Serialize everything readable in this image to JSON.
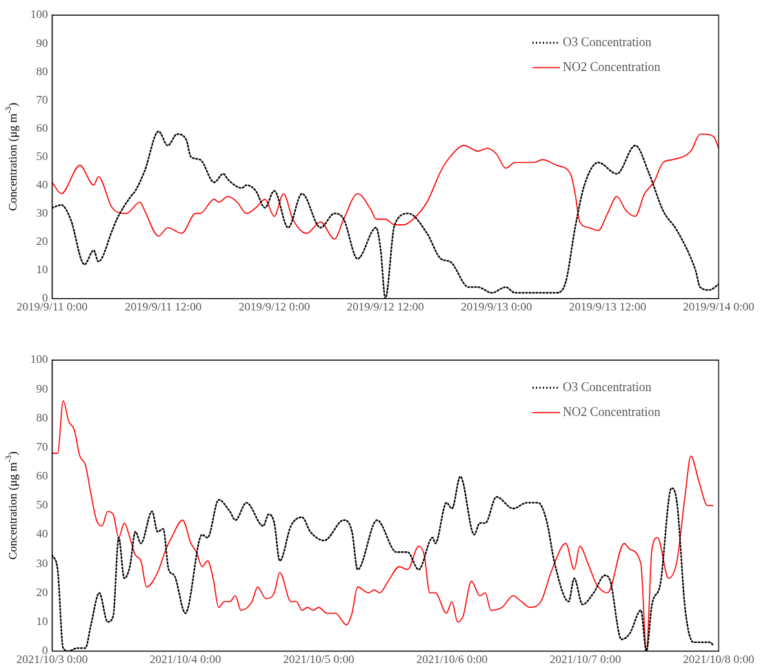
{
  "chart_data": [
    {
      "type": "line",
      "ylabel": "Concentration (μg m$^{-3}$)",
      "legend": "top right",
      "marker": "none",
      "xlim": [
        "2019-09-11T00:00",
        "2019-09-14T00:00"
      ],
      "xticks": [
        {
          "value": "2019-09-11T00:00",
          "label": "2019/9/11 0:00"
        },
        {
          "value": "2019-09-11T12:00",
          "label": "2019/9/11 12:00"
        },
        {
          "value": "2019-09-12T00:00",
          "label": "2019/9/12 0:00"
        },
        {
          "value": "2019-09-12T12:00",
          "label": "2019/9/12 12:00"
        },
        {
          "value": "2019-09-13T00:00",
          "label": "2019/9/13 0:00"
        },
        {
          "value": "2019-09-13T12:00",
          "label": "2019/9/13 12:00"
        },
        {
          "value": "2019-09-14T00:00",
          "label": "2019/9/14 0:00"
        }
      ],
      "ylim": [
        0,
        100
      ],
      "yticks": [
        0,
        10,
        20,
        30,
        40,
        50,
        60,
        70,
        80,
        90,
        100
      ],
      "series": [
        {
          "name": "O3 Concentration",
          "color": "#000000",
          "line_style": "dotted",
          "x": [
            "2019-09-11T00:00",
            "2019-09-11T01:00",
            "2019-09-11T02:00",
            "2019-09-11T03:30",
            "2019-09-11T04:30",
            "2019-09-11T05:00",
            "2019-09-11T06:30",
            "2019-09-11T07:00",
            "2019-09-11T08:30",
            "2019-09-11T09:00",
            "2019-09-11T10:00",
            "2019-09-11T11:30",
            "2019-09-11T12:30",
            "2019-09-11T13:30",
            "2019-09-11T14:30",
            "2019-09-11T15:00",
            "2019-09-11T16:00",
            "2019-09-11T17:30",
            "2019-09-11T18:30",
            "2019-09-11T19:00",
            "2019-09-11T20:30",
            "2019-09-11T21:00",
            "2019-09-11T22:00",
            "2019-09-11T23:00",
            "2019-09-12T00:00",
            "2019-09-12T01:30",
            "2019-09-12T03:00",
            "2019-09-12T05:00",
            "2019-09-12T06:30",
            "2019-09-12T07:30",
            "2019-09-12T09:00",
            "2019-09-12T11:00",
            "2019-09-12T11:30",
            "2019-09-12T12:00",
            "2019-09-12T13:00",
            "2019-09-12T14:30",
            "2019-09-12T16:30",
            "2019-09-12T18:00",
            "2019-09-12T19:00",
            "2019-09-12T21:00",
            "2019-09-12T22:00",
            "2019-09-12T23:30",
            "2019-09-13T01:00",
            "2019-09-13T02:00",
            "2019-09-13T06:30",
            "2019-09-13T07:30",
            "2019-09-13T08:30",
            "2019-09-13T09:30",
            "2019-09-13T11:00",
            "2019-09-13T13:00",
            "2019-09-13T15:00",
            "2019-09-13T16:30",
            "2019-09-13T18:00",
            "2019-09-13T19:30",
            "2019-09-13T21:30",
            "2019-09-13T22:00",
            "2019-09-13T23:00",
            "2019-09-14T00:00"
          ],
          "values": [
            32,
            33,
            28,
            12,
            17,
            13,
            24,
            28,
            36,
            38,
            45,
            59,
            54,
            58,
            56,
            50,
            49,
            41,
            44,
            42,
            39,
            40,
            38,
            32,
            38,
            25,
            37,
            25,
            30,
            28,
            14,
            25,
            17,
            0,
            26,
            30,
            23,
            14,
            13,
            4,
            4,
            2,
            4,
            2,
            2,
            6,
            25,
            40,
            48,
            44,
            54,
            44,
            31,
            24,
            10,
            4,
            3,
            5
          ]
        },
        {
          "name": "NO2 Concentration",
          "color": "#ff0000",
          "line_style": "solid",
          "x": [
            "2019-09-11T00:00",
            "2019-09-11T01:00",
            "2019-09-11T03:00",
            "2019-09-11T04:30",
            "2019-09-11T05:00",
            "2019-09-11T06:30",
            "2019-09-11T08:00",
            "2019-09-11T09:30",
            "2019-09-11T10:00",
            "2019-09-11T11:30",
            "2019-09-11T12:30",
            "2019-09-11T14:00",
            "2019-09-11T15:30",
            "2019-09-11T16:00",
            "2019-09-11T17:30",
            "2019-09-11T18:00",
            "2019-09-11T19:00",
            "2019-09-11T20:00",
            "2019-09-11T21:00",
            "2019-09-11T22:00",
            "2019-09-11T23:00",
            "2019-09-12T00:00",
            "2019-09-12T01:00",
            "2019-09-12T02:00",
            "2019-09-12T03:30",
            "2019-09-12T05:00",
            "2019-09-12T06:30",
            "2019-09-12T07:30",
            "2019-09-12T09:00",
            "2019-09-12T10:30",
            "2019-09-12T11:00",
            "2019-09-12T12:00",
            "2019-09-12T13:00",
            "2019-09-12T14:00",
            "2019-09-12T15:00",
            "2019-09-12T16:30",
            "2019-09-12T18:00",
            "2019-09-12T19:00",
            "2019-09-12T20:30",
            "2019-09-12T22:00",
            "2019-09-12T23:00",
            "2019-09-13T00:00",
            "2019-09-13T01:00",
            "2019-09-13T02:00",
            "2019-09-13T04:00",
            "2019-09-13T05:00",
            "2019-09-13T06:30",
            "2019-09-13T08:00",
            "2019-09-13T08:30",
            "2019-09-13T09:00",
            "2019-09-13T10:00",
            "2019-09-13T11:00",
            "2019-09-13T12:00",
            "2019-09-13T13:00",
            "2019-09-13T14:00",
            "2019-09-13T15:00",
            "2019-09-13T16:00",
            "2019-09-13T17:00",
            "2019-09-13T18:00",
            "2019-09-13T19:00",
            "2019-09-13T21:00",
            "2019-09-13T22:00",
            "2019-09-13T22:30",
            "2019-09-13T23:30",
            "2019-09-14T00:00"
          ],
          "values": [
            41,
            37,
            47,
            40,
            43,
            32,
            30,
            34,
            31,
            22,
            25,
            23,
            30,
            30,
            35,
            34,
            36,
            34,
            30,
            32,
            35,
            29,
            37,
            28,
            23,
            27,
            21,
            28,
            37,
            31,
            28,
            28,
            26,
            26,
            28,
            34,
            45,
            50,
            54,
            52,
            53,
            51,
            46,
            48,
            48,
            49,
            47,
            44,
            37,
            27,
            25,
            24,
            30,
            36,
            31,
            29,
            37,
            41,
            48,
            49,
            52,
            58,
            58,
            57,
            53
          ]
        }
      ]
    },
    {
      "type": "line",
      "ylabel": "Concentration (μg m$^{-3}$)",
      "legend": "top right",
      "marker": "none",
      "xlim": [
        "2021-10-03T00:00",
        "2021-10-08T00:00"
      ],
      "xticks": [
        {
          "value": "2021-10-03T00:00",
          "label": "2021/10/3 0:00"
        },
        {
          "value": "2021-10-04T00:00",
          "label": "2021/10/4 0:00"
        },
        {
          "value": "2021-10-05T00:00",
          "label": "2021/10/5 0:00"
        },
        {
          "value": "2021-10-06T00:00",
          "label": "2021/10/6 0:00"
        },
        {
          "value": "2021-10-07T00:00",
          "label": "2021/10/7 0:00"
        },
        {
          "value": "2021-10-08T00:00",
          "label": "2021/10/8 0:00"
        }
      ],
      "ylim": [
        0,
        100
      ],
      "yticks": [
        0,
        10,
        20,
        30,
        40,
        50,
        60,
        70,
        80,
        90,
        100
      ],
      "series": [
        {
          "name": "O3 Concentration",
          "color": "#000000",
          "line_style": "dotted",
          "x": [
            "2021-10-03T00:00",
            "2021-10-03T01:00",
            "2021-10-03T02:00",
            "2021-10-03T03:00",
            "2021-10-03T04:30",
            "2021-10-03T06:00",
            "2021-10-03T07:00",
            "2021-10-03T08:30",
            "2021-10-03T10:00",
            "2021-10-03T11:00",
            "2021-10-03T12:00",
            "2021-10-03T13:00",
            "2021-10-03T14:00",
            "2021-10-03T15:00",
            "2021-10-03T16:00",
            "2021-10-03T18:00",
            "2021-10-03T19:00",
            "2021-10-03T20:00",
            "2021-10-03T21:00",
            "2021-10-03T22:00",
            "2021-10-04T00:00",
            "2021-10-04T03:00",
            "2021-10-04T04:00",
            "2021-10-04T06:00",
            "2021-10-04T08:00",
            "2021-10-04T09:00",
            "2021-10-04T11:00",
            "2021-10-04T14:00",
            "2021-10-04T15:00",
            "2021-10-04T16:00",
            "2021-10-04T17:00",
            "2021-10-04T19:00",
            "2021-10-04T21:00",
            "2021-10-04T22:30",
            "2021-10-05T01:00",
            "2021-10-05T04:30",
            "2021-10-05T06:00",
            "2021-10-05T07:00",
            "2021-10-05T10:30",
            "2021-10-05T14:00",
            "2021-10-05T16:00",
            "2021-10-05T18:00",
            "2021-10-05T20:30",
            "2021-10-05T21:00",
            "2021-10-05T23:00",
            "2021-10-06T00:00",
            "2021-10-06T01:30",
            "2021-10-06T04:00",
            "2021-10-06T05:00",
            "2021-10-06T06:00",
            "2021-10-06T08:00",
            "2021-10-06T11:00",
            "2021-10-06T13:30",
            "2021-10-06T15:30",
            "2021-10-06T17:00",
            "2021-10-06T18:30",
            "2021-10-06T21:00",
            "2021-10-06T22:00",
            "2021-10-06T23:30",
            "2021-10-07T01:30",
            "2021-10-07T03:30",
            "2021-10-07T04:30",
            "2021-10-07T06:30",
            "2021-10-07T08:00",
            "2021-10-07T10:00",
            "2021-10-07T11:00",
            "2021-10-07T12:00",
            "2021-10-07T13:30",
            "2021-10-07T15:30",
            "2021-10-07T16:30",
            "2021-10-07T18:00",
            "2021-10-07T19:30",
            "2021-10-07T22:30",
            "2021-10-07T23:00"
          ],
          "values": [
            33,
            28,
            1,
            0,
            1,
            1,
            9,
            20,
            10,
            12,
            39,
            25,
            29,
            41,
            37,
            48,
            41,
            42,
            28,
            26,
            13,
            40,
            39,
            52,
            48,
            45,
            51,
            43,
            47,
            44,
            31,
            43,
            46,
            41,
            38,
            45,
            41,
            28,
            45,
            34,
            34,
            28,
            39,
            37,
            51,
            49,
            60,
            40,
            44,
            44,
            53,
            49,
            51,
            51,
            45,
            30,
            17,
            25,
            16,
            20,
            26,
            24,
            4,
            6,
            14,
            0,
            16,
            23,
            56,
            51,
            14,
            3,
            3,
            2
          ]
        },
        {
          "name": "NO2 Concentration",
          "color": "#ff0000",
          "line_style": "solid",
          "x": [
            "2021-10-03T00:00",
            "2021-10-03T01:00",
            "2021-10-03T02:00",
            "2021-10-03T03:00",
            "2021-10-03T04:00",
            "2021-10-03T05:00",
            "2021-10-03T06:00",
            "2021-10-03T07:00",
            "2021-10-03T08:00",
            "2021-10-03T09:00",
            "2021-10-03T10:00",
            "2021-10-03T11:00",
            "2021-10-03T12:00",
            "2021-10-03T13:00",
            "2021-10-03T14:00",
            "2021-10-03T15:00",
            "2021-10-03T16:00",
            "2021-10-03T17:00",
            "2021-10-03T19:00",
            "2021-10-03T20:30",
            "2021-10-03T21:30",
            "2021-10-03T23:30",
            "2021-10-04T01:00",
            "2021-10-04T02:00",
            "2021-10-04T03:00",
            "2021-10-04T04:00",
            "2021-10-04T05:00",
            "2021-10-04T06:00",
            "2021-10-04T07:00",
            "2021-10-04T08:00",
            "2021-10-04T09:00",
            "2021-10-04T10:00",
            "2021-10-04T12:00",
            "2021-10-04T13:00",
            "2021-10-04T14:30",
            "2021-10-04T16:00",
            "2021-10-04T17:00",
            "2021-10-04T19:00",
            "2021-10-04T20:00",
            "2021-10-04T21:00",
            "2021-10-04T22:00",
            "2021-10-04T23:00",
            "2021-10-05T00:00",
            "2021-10-05T01:30",
            "2021-10-05T03:00",
            "2021-10-05T05:00",
            "2021-10-05T06:00",
            "2021-10-05T07:00",
            "2021-10-05T09:00",
            "2021-10-05T10:00",
            "2021-10-05T11:00",
            "2021-10-05T12:30",
            "2021-10-05T14:30",
            "2021-10-05T16:00",
            "2021-10-05T18:00",
            "2021-10-05T19:00",
            "2021-10-05T20:00",
            "2021-10-05T21:00",
            "2021-10-05T23:00",
            "2021-10-06T00:00",
            "2021-10-06T01:00",
            "2021-10-06T02:00",
            "2021-10-06T03:30",
            "2021-10-06T05:00",
            "2021-10-06T06:00",
            "2021-10-06T07:00",
            "2021-10-06T09:00",
            "2021-10-06T11:00",
            "2021-10-06T12:30",
            "2021-10-06T14:00",
            "2021-10-06T16:00",
            "2021-10-06T18:00",
            "2021-10-06T20:30",
            "2021-10-06T22:00",
            "2021-10-06T23:00",
            "2021-10-07T00:30",
            "2021-10-07T02:00",
            "2021-10-07T04:00",
            "2021-10-07T07:00",
            "2021-10-07T08:00",
            "2021-10-07T10:00",
            "2021-10-07T11:00",
            "2021-10-07T12:00",
            "2021-10-07T13:00",
            "2021-10-07T15:00",
            "2021-10-07T16:30",
            "2021-10-07T18:00",
            "2021-10-07T19:00",
            "2021-10-07T20:30",
            "2021-10-07T22:00",
            "2021-10-07T23:00"
          ],
          "values": [
            68,
            68,
            86,
            79,
            76,
            67,
            64,
            54,
            45,
            43,
            48,
            47,
            39,
            44,
            39,
            33,
            31,
            22,
            27,
            35,
            39,
            45,
            37,
            34,
            29,
            31,
            25,
            15,
            17,
            17,
            19,
            14,
            17,
            22,
            18,
            20,
            27,
            17,
            17,
            14,
            15,
            14,
            15,
            13,
            13,
            9,
            13,
            22,
            20,
            21,
            20,
            24,
            29,
            28,
            36,
            33,
            20,
            20,
            13,
            17,
            10,
            12,
            24,
            19,
            20,
            14,
            15,
            19,
            17,
            15,
            17,
            28,
            37,
            28,
            36,
            30,
            23,
            20,
            37,
            35,
            30,
            0,
            35,
            39,
            25,
            31,
            54,
            67,
            58,
            50,
            50
          ]
        }
      ]
    }
  ]
}
